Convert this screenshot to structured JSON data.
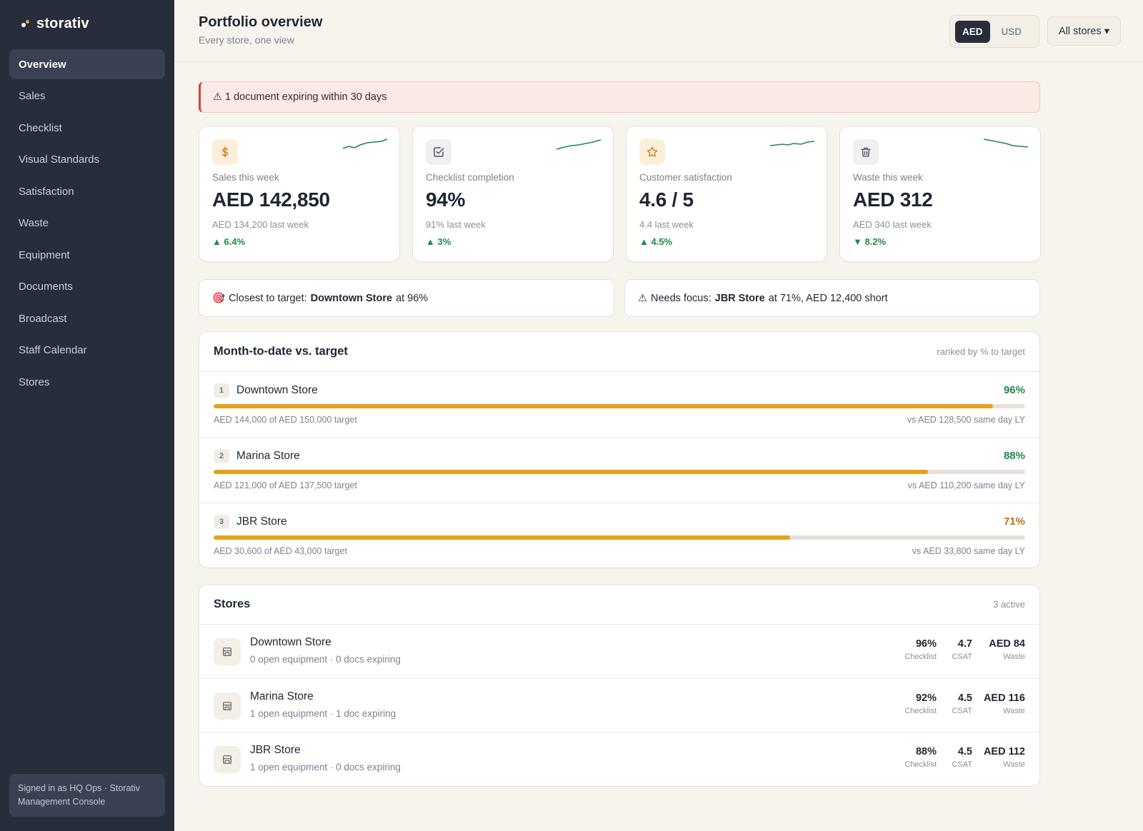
{
  "app": {
    "brand": "storativ"
  },
  "sidebar": {
    "items": [
      {
        "label": "Overview",
        "active": true
      },
      {
        "label": "Sales"
      },
      {
        "label": "Checklist"
      },
      {
        "label": "Visual Standards"
      },
      {
        "label": "Satisfaction"
      },
      {
        "label": "Waste"
      },
      {
        "label": "Equipment"
      },
      {
        "label": "Documents"
      },
      {
        "label": "Broadcast"
      },
      {
        "label": "Staff Calendar"
      },
      {
        "label": "Stores"
      }
    ],
    "signed_in": "Signed in as HQ Ops · Storativ Management Console"
  },
  "header": {
    "title": "Portfolio overview",
    "subtitle": "Every store, one view",
    "currency": {
      "options": [
        "AED",
        "USD"
      ],
      "selected": "AED"
    },
    "store_filter": "All stores ▾"
  },
  "alert": {
    "icon": "warning-icon",
    "glyph": "⚠",
    "text": "1 document expiring within 30 days"
  },
  "kpis": [
    {
      "icon": "dollar-icon",
      "label": "Sales this week",
      "value": "AED 142,850",
      "prev": "AED 134,200 last week",
      "delta": "▲ 6.4%",
      "trend": "up"
    },
    {
      "icon": "checkbox-icon",
      "label": "Checklist completion",
      "value": "94%",
      "prev": "91% last week",
      "delta": "▲ 3%",
      "trend": "up"
    },
    {
      "icon": "star-icon",
      "label": "Customer satisfaction",
      "value": "4.6 / 5",
      "prev": "4.4 last week",
      "delta": "▲ 4.5%",
      "trend": "up"
    },
    {
      "icon": "trash-icon",
      "label": "Waste this week",
      "value": "AED 312",
      "prev": "AED 340 last week",
      "delta": "▼ 8.2%",
      "trend": "down"
    }
  ],
  "focus": {
    "closest": {
      "glyph": "🎯",
      "prefix": "Closest to target:",
      "store": "Downtown Store",
      "suffix": "at 96%"
    },
    "needs": {
      "glyph": "⚠",
      "prefix": "Needs focus:",
      "store": "JBR Store",
      "suffix": "at 71%, AED 12,400 short"
    }
  },
  "target_panel": {
    "title": "Month-to-date vs. target",
    "meta": "ranked by % to target",
    "rows": [
      {
        "rank": "1",
        "name": "Downtown Store",
        "pct": "96%",
        "progress": 0.96,
        "detail": "AED 144,000 of AED 150,000 target",
        "ly": "vs AED 128,500 same day LY"
      },
      {
        "rank": "2",
        "name": "Marina Store",
        "pct": "88%",
        "progress": 0.88,
        "detail": "AED 121,000 of AED 137,500 target",
        "ly": "vs AED 110,200 same day LY"
      },
      {
        "rank": "3",
        "name": "JBR Store",
        "pct": "71%",
        "progress": 0.71,
        "detail": "AED 30,600 of AED 43,000 target",
        "ly": "vs AED 33,800 same day LY"
      }
    ]
  },
  "stores_panel": {
    "title": "Stores",
    "meta": "3 active",
    "labels": {
      "checklist": "Checklist",
      "csat": "CSAT",
      "waste": "Waste"
    },
    "rows": [
      {
        "name": "Downtown Store",
        "sub": "0 open equipment · 0 docs expiring",
        "checklist": "96%",
        "csat": "4.7",
        "waste": "AED 84"
      },
      {
        "name": "Marina Store",
        "sub": "1 open equipment · 1 doc expiring",
        "checklist": "92%",
        "csat": "4.5",
        "waste": "AED 116"
      },
      {
        "name": "JBR Store",
        "sub": "1 open equipment · 0 docs expiring",
        "checklist": "88%",
        "csat": "4.5",
        "waste": "AED 112"
      }
    ]
  },
  "colors": {
    "sidebar": "#272d3b",
    "accent": "#e3a11f",
    "positive": "#1f8a4c",
    "warning": "#c06d12",
    "alert": "#c9473b"
  }
}
